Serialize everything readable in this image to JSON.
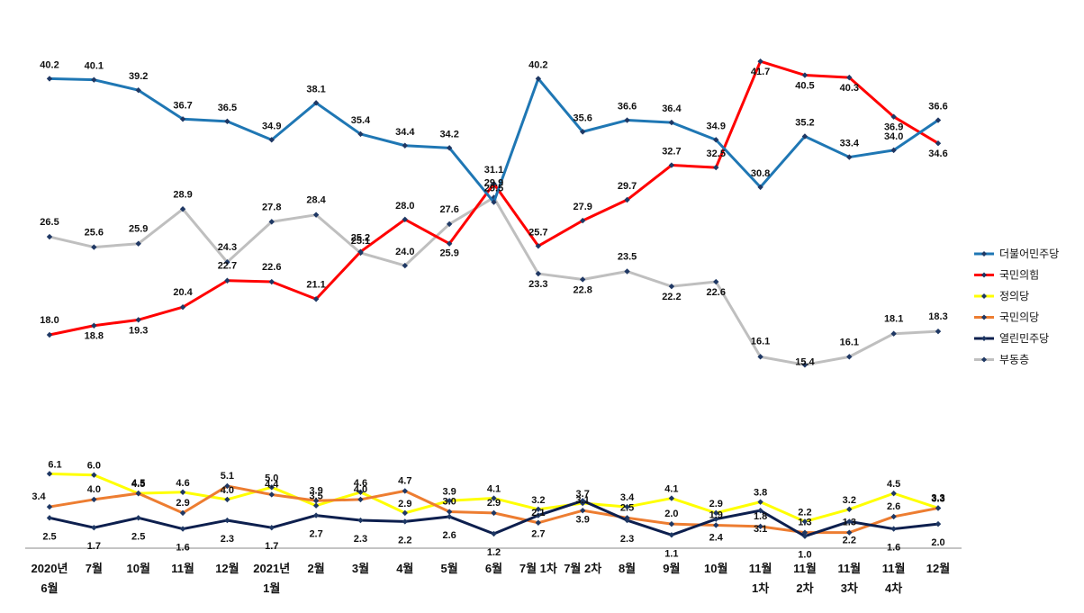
{
  "chart_data": {
    "type": "line",
    "categories": [
      [
        "2020년",
        "6월"
      ],
      [
        "7월"
      ],
      [
        "10월"
      ],
      [
        "11월"
      ],
      [
        "12월"
      ],
      [
        "2021년",
        "1월"
      ],
      [
        "2월"
      ],
      [
        "3월"
      ],
      [
        "4월"
      ],
      [
        "5월"
      ],
      [
        "6월"
      ],
      [
        "7월 1차"
      ],
      [
        "7월 2차"
      ],
      [
        "8월"
      ],
      [
        "9월"
      ],
      [
        "10월"
      ],
      [
        "11월",
        "1차"
      ],
      [
        "11월",
        "2차"
      ],
      [
        "11월",
        "3차"
      ],
      [
        "11월",
        "4차"
      ],
      [
        "12월"
      ]
    ],
    "series": [
      {
        "name": "더불어민주당",
        "color": "#1F77B4",
        "values": [
          40.2,
          40.1,
          39.2,
          36.7,
          36.5,
          34.9,
          38.1,
          35.4,
          34.4,
          34.2,
          29.5,
          40.2,
          35.6,
          36.6,
          36.4,
          34.9,
          30.8,
          35.2,
          33.4,
          34.0,
          36.6
        ]
      },
      {
        "name": "국민의힘",
        "color": "#FF0000",
        "values": [
          18.0,
          18.8,
          19.3,
          20.4,
          22.7,
          22.6,
          21.1,
          25.2,
          28.0,
          25.9,
          31.1,
          25.7,
          27.9,
          29.7,
          32.7,
          32.5,
          41.7,
          40.5,
          40.3,
          36.9,
          34.6
        ]
      },
      {
        "name": "정의당",
        "color": "#FFFF00",
        "values": [
          6.1,
          6.0,
          4.5,
          4.6,
          4.0,
          5.0,
          3.5,
          4.6,
          2.9,
          3.9,
          4.1,
          3.2,
          3.7,
          3.4,
          4.1,
          2.9,
          3.8,
          2.2,
          3.2,
          4.5,
          3.3
        ]
      },
      {
        "name": "국민의당",
        "color": "#ED7D31",
        "values": [
          3.4,
          4.0,
          4.5,
          2.9,
          5.1,
          4.4,
          3.9,
          4.0,
          4.7,
          3.0,
          2.9,
          2.1,
          3.1,
          2.5,
          2.0,
          1.9,
          1.8,
          1.3,
          1.3,
          2.6,
          3.3
        ]
      },
      {
        "name": "열린민주당",
        "color": "#0D1F4E",
        "values": [
          2.5,
          1.7,
          2.5,
          1.6,
          2.3,
          1.7,
          2.7,
          2.3,
          2.2,
          2.6,
          1.2,
          2.7,
          3.9,
          2.3,
          1.1,
          2.4,
          3.1,
          1.0,
          2.2,
          1.6,
          2.0
        ]
      },
      {
        "name": "부동층",
        "color": "#BFBFBF",
        "values": [
          26.5,
          25.6,
          25.9,
          28.9,
          24.3,
          27.8,
          28.4,
          25.1,
          24.0,
          27.6,
          29.9,
          23.3,
          22.8,
          23.5,
          22.2,
          22.6,
          16.1,
          15.4,
          16.1,
          18.1,
          18.3
        ]
      }
    ],
    "legend_position": "right",
    "grid": false
  }
}
